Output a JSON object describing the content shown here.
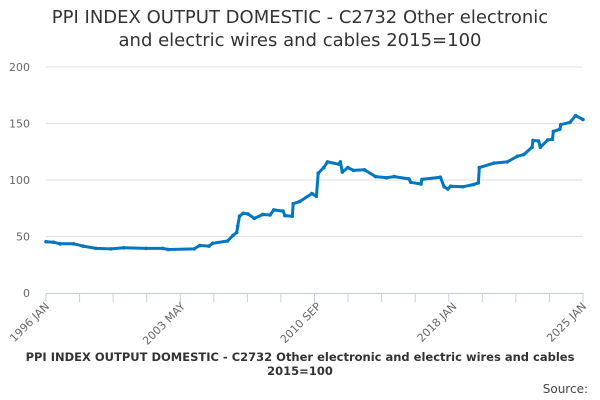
{
  "chart_data": {
    "type": "line",
    "title": "PPI INDEX OUTPUT DOMESTIC - C2732 Other electronic and electric wires and cables 2015=100",
    "title_lines": [
      "PPI INDEX OUTPUT DOMESTIC - C2732 Other electronic",
      "and electric wires and cables 2015=100"
    ],
    "xlabel": "",
    "ylabel": "",
    "ylim": [
      0,
      200
    ],
    "yticks": [
      0,
      50,
      100,
      150,
      200
    ],
    "xlim": [
      1996.0,
      2025.0
    ],
    "xtick_labels": [
      {
        "x": 1996.0,
        "label": "1996 JAN"
      },
      {
        "x": 2003.33,
        "label": "2003 MAY"
      },
      {
        "x": 2010.67,
        "label": "2010 SEP"
      },
      {
        "x": 2018.0,
        "label": "2018 JAN"
      },
      {
        "x": 2025.0,
        "label": "2025 JAN"
      }
    ],
    "grid": true,
    "color": "#0077c0",
    "series": [
      {
        "name": "PPI INDEX OUTPUT DOMESTIC - C2732 Other electronic and electric wires and cables 2015=100",
        "x": [
          1996.0,
          1996.4,
          1996.76,
          1997.5,
          1998.0,
          1998.7,
          1999.5,
          2000.2,
          2001.4,
          2002.3,
          2002.6,
          2004.0,
          2004.3,
          2004.8,
          2005.0,
          2005.8,
          2006.1,
          2006.3,
          2006.35,
          2006.45,
          2006.65,
          2006.9,
          2007.25,
          2007.7,
          2008.1,
          2008.3,
          2008.8,
          2008.9,
          2009.3,
          2009.35,
          2009.7,
          2010.36,
          2010.6,
          2010.7,
          2011.0,
          2011.2,
          2011.8,
          2011.9,
          2012.0,
          2012.3,
          2012.6,
          2013.2,
          2013.8,
          2014.4,
          2014.8,
          2015.6,
          2015.7,
          2016.25,
          2016.3,
          2017.3,
          2017.5,
          2017.7,
          2017.85,
          2018.5,
          2019.1,
          2019.35,
          2019.4,
          2020.2,
          2020.9,
          2021.45,
          2021.8,
          2022.25,
          2022.3,
          2022.6,
          2022.7,
          2023.1,
          2023.35,
          2023.4,
          2023.75,
          2023.8,
          2024.3,
          2024.6,
          2025.0
        ],
        "values": [
          45.4,
          45,
          43.5,
          43.5,
          41.5,
          39.5,
          39,
          40,
          39.5,
          39.5,
          38.5,
          39,
          42,
          41.5,
          44,
          46,
          51,
          53.5,
          59,
          68,
          70.5,
          70,
          66,
          69.5,
          69,
          73.5,
          72.5,
          68.5,
          68,
          79,
          81,
          88,
          85.5,
          106,
          111,
          116,
          114,
          116,
          107,
          111,
          108.5,
          109,
          103,
          102,
          103,
          101,
          98,
          96.5,
          100.5,
          102.5,
          94,
          92,
          94.5,
          94,
          96,
          97.5,
          111,
          115,
          116,
          121,
          122.5,
          129,
          135,
          134.5,
          129,
          135.5,
          136,
          143,
          145,
          149,
          151,
          157,
          153.5
        ]
      }
    ]
  },
  "footer": {
    "caption": "PPI INDEX OUTPUT DOMESTIC - C2732 Other electronic and electric wires and cables 2015=100",
    "source_label": "Source:"
  }
}
